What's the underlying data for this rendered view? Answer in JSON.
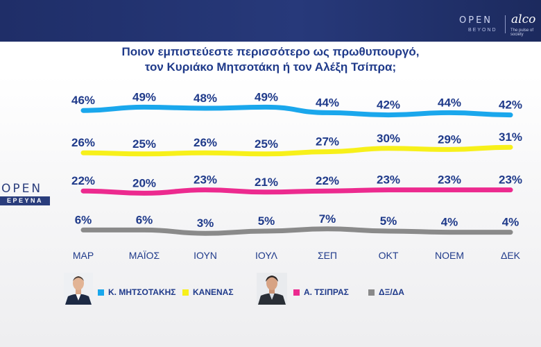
{
  "brand": {
    "open": "OPEN",
    "open_sub": "BEYOND",
    "alco": "alco",
    "alco_sub": "The pulse of society"
  },
  "title_lines": [
    "Ποιον εμπιστεύεστε περισσότερο ως πρωθυπουργό,",
    "τον Κυριάκο Μητσοτάκη ή τον Αλέξη Τσίπρα;"
  ],
  "side_logo": {
    "word": "OPEN",
    "box": "ΕΡΕΥΝΑ"
  },
  "chart_data": {
    "type": "line",
    "title": "Ποιον εμπιστεύεστε περισσότερο ως πρωθυπουργό, τον Κυριάκο Μητσοτάκη ή τον Αλέξη Τσίπρα;",
    "categories": [
      "ΜΑΡ",
      "ΜΑΪΟΣ",
      "ΙΟΥΝ",
      "ΙΟΥΛ",
      "ΣΕΠ",
      "ΟΚΤ",
      "ΝΟΕΜ",
      "ΔΕΚ"
    ],
    "series": [
      {
        "name": "Κ. ΜΗΤΣΟΤΑΚΗΣ",
        "color": "#1aa7ec",
        "values": [
          46,
          49,
          48,
          49,
          44,
          42,
          44,
          42
        ]
      },
      {
        "name": "ΚΑΝΕΝΑΣ",
        "color": "#f7f01a",
        "values": [
          26,
          25,
          26,
          25,
          27,
          30,
          29,
          31
        ]
      },
      {
        "name": "Α. ΤΣΙΠΡΑΣ",
        "color": "#ec2a8f",
        "values": [
          22,
          20,
          23,
          21,
          22,
          23,
          23,
          23
        ]
      },
      {
        "name": "ΔΞ/ΔΑ",
        "color": "#8a8a8a",
        "values": [
          6,
          6,
          3,
          5,
          7,
          5,
          4,
          4
        ]
      }
    ],
    "value_suffix": "%",
    "grid": false,
    "legend_position": "bottom"
  }
}
